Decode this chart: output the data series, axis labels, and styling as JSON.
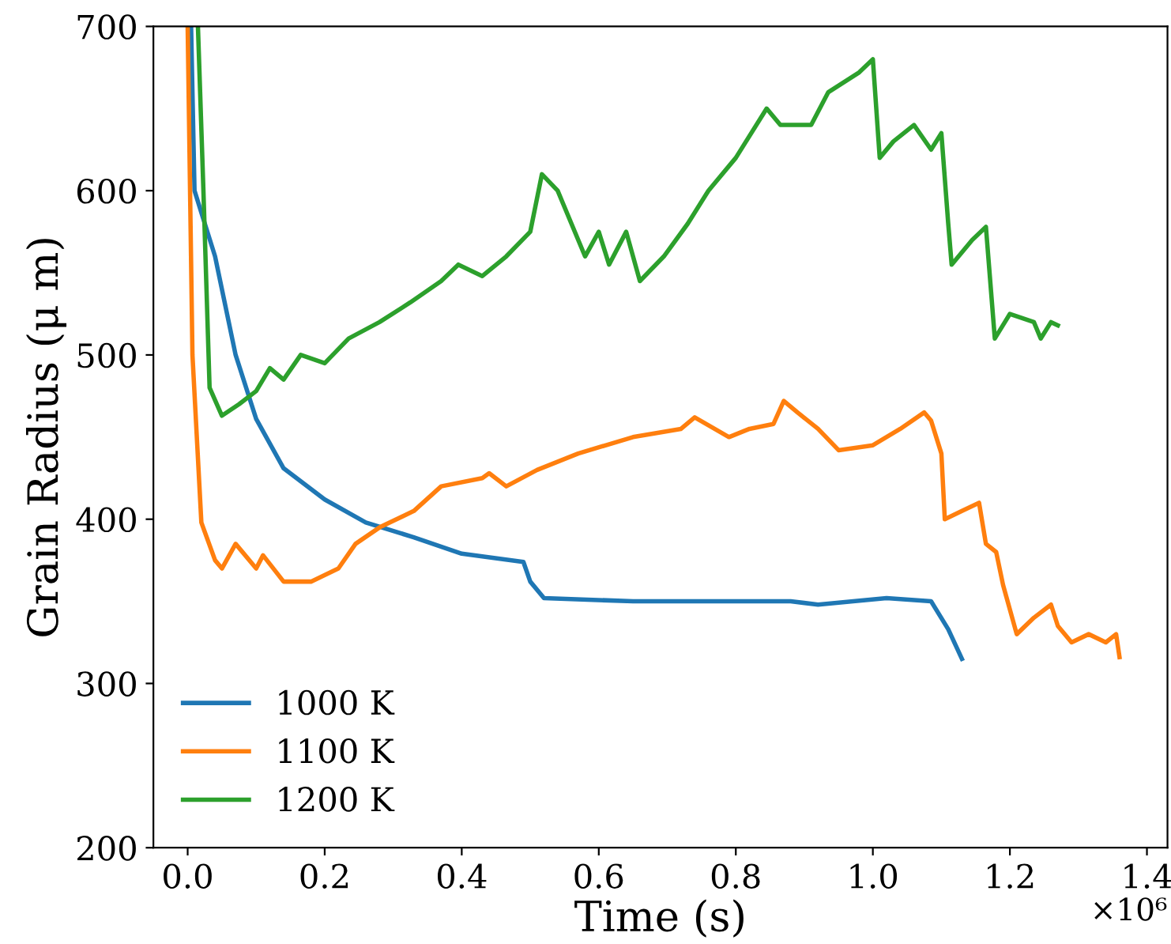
{
  "chart_data": {
    "type": "line",
    "xlabel": "Time (s)",
    "ylabel": "Grain Radius (μ m)",
    "xlim": [
      -0.05,
      1.43
    ],
    "ylim": [
      200,
      700
    ],
    "xticks": [
      {
        "value": 0.0,
        "label": "0.0"
      },
      {
        "value": 0.2,
        "label": "0.2"
      },
      {
        "value": 0.4,
        "label": "0.4"
      },
      {
        "value": 0.6,
        "label": "0.6"
      },
      {
        "value": 0.8,
        "label": "0.8"
      },
      {
        "value": 1.0,
        "label": "1.0"
      },
      {
        "value": 1.2,
        "label": "1.2"
      },
      {
        "value": 1.4,
        "label": "1.4"
      }
    ],
    "yticks": [
      200,
      300,
      400,
      500,
      600,
      700
    ],
    "annotations": [
      "×10⁶"
    ],
    "legend": "bottom left",
    "grid": false,
    "series": [
      {
        "name": "1000 K",
        "color": "#1f77b4",
        "x": [
          0.005,
          0.01,
          0.04,
          0.045,
          0.07,
          0.1,
          0.14,
          0.2,
          0.26,
          0.33,
          0.4,
          0.49,
          0.5,
          0.52,
          0.65,
          0.88,
          0.92,
          1.02,
          1.085,
          1.11,
          1.13
        ],
        "values": [
          700,
          600,
          560,
          550,
          500,
          461,
          431,
          412,
          398,
          389,
          379,
          374,
          362,
          352,
          350,
          350,
          348,
          352,
          350,
          333,
          315
        ]
      },
      {
        "name": "1100 K",
        "color": "#ff7f0e",
        "x": [
          0.0,
          0.007,
          0.02,
          0.04,
          0.05,
          0.07,
          0.1,
          0.11,
          0.14,
          0.18,
          0.22,
          0.245,
          0.28,
          0.33,
          0.37,
          0.43,
          0.44,
          0.465,
          0.51,
          0.57,
          0.65,
          0.72,
          0.74,
          0.79,
          0.82,
          0.855,
          0.87,
          0.89,
          0.92,
          0.95,
          1.0,
          1.04,
          1.075,
          1.085,
          1.1,
          1.105,
          1.13,
          1.155,
          1.165,
          1.18,
          1.19,
          1.21,
          1.235,
          1.26,
          1.27,
          1.29,
          1.315,
          1.34,
          1.355,
          1.36
        ],
        "values": [
          700,
          500,
          398,
          375,
          370,
          385,
          370,
          378,
          362,
          362,
          370,
          385,
          395,
          405,
          420,
          425,
          428,
          420,
          430,
          440,
          450,
          455,
          462,
          450,
          455,
          458,
          472,
          465,
          455,
          442,
          445,
          455,
          465,
          460,
          440,
          400,
          405,
          410,
          385,
          380,
          360,
          330,
          340,
          348,
          335,
          325,
          330,
          325,
          330,
          316
        ]
      },
      {
        "name": "1200 K",
        "color": "#2ca02c",
        "x": [
          0.015,
          0.023,
          0.032,
          0.05,
          0.075,
          0.1,
          0.12,
          0.14,
          0.165,
          0.2,
          0.235,
          0.28,
          0.325,
          0.37,
          0.395,
          0.43,
          0.465,
          0.5,
          0.517,
          0.54,
          0.58,
          0.6,
          0.615,
          0.64,
          0.66,
          0.695,
          0.73,
          0.76,
          0.8,
          0.845,
          0.865,
          0.91,
          0.935,
          0.98,
          1.0,
          1.01,
          1.03,
          1.06,
          1.085,
          1.1,
          1.11,
          1.115,
          1.145,
          1.165,
          1.178,
          1.2,
          1.235,
          1.245,
          1.26,
          1.27
        ],
        "values": [
          700,
          600,
          480,
          463,
          470,
          478,
          492,
          485,
          500,
          495,
          510,
          520,
          532,
          545,
          555,
          548,
          560,
          575,
          610,
          600,
          560,
          575,
          555,
          575,
          545,
          560,
          580,
          600,
          620,
          650,
          640,
          640,
          660,
          672,
          680,
          620,
          630,
          640,
          625,
          635,
          580,
          555,
          570,
          578,
          510,
          525,
          520,
          510,
          520,
          518
        ]
      }
    ]
  }
}
